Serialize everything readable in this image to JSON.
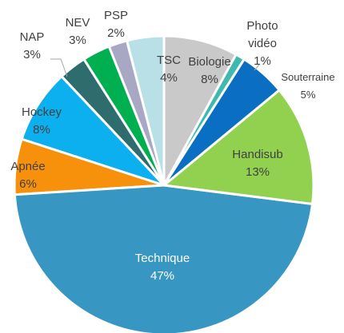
{
  "chart_data": {
    "type": "pie",
    "categories": [
      "Biologie",
      "Photo vidéo",
      "Souterraine",
      "Handisub",
      "Technique",
      "Apnée",
      "Hockey",
      "NAP",
      "NEV",
      "PSP",
      "TSC"
    ],
    "values": [
      8,
      1,
      5,
      13,
      47,
      6,
      8,
      3,
      3,
      2,
      4
    ],
    "value_labels": [
      "8%",
      "1%",
      "5%",
      "13%",
      "47%",
      "6%",
      "8%",
      "3%",
      "3%",
      "2%",
      "4%"
    ],
    "colors": [
      "#c9c9c9",
      "#3fb8b0",
      "#0a6fc2",
      "#92d050",
      "#3797c2",
      "#f7900a",
      "#0cb0ee",
      "#2e6c6e",
      "#00b050",
      "#a8a8c4",
      "#b8e0e6"
    ]
  }
}
